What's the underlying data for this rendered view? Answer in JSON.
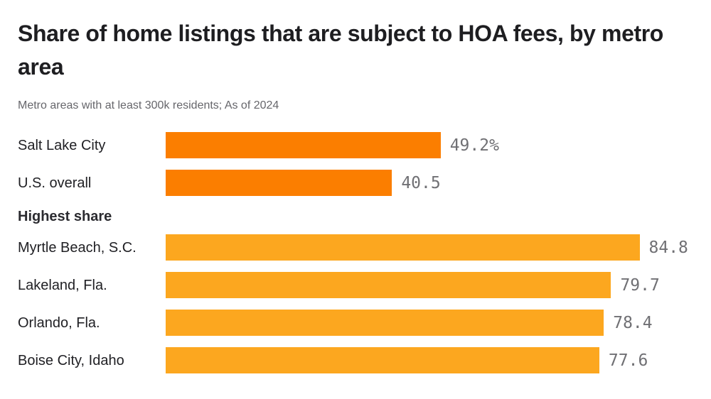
{
  "header": {
    "title": "Share of home listings that are subject to HOA fees, by metro area",
    "subtitle": "Metro areas with at least 300k residents; As of 2024"
  },
  "colors": {
    "highlight_orange": "#fb7e00",
    "standard_orange": "#fca71f",
    "value_text": "#707074",
    "title_text": "#1e1e21"
  },
  "chart_data": {
    "type": "bar",
    "orientation": "horizontal",
    "unit": "percent",
    "xlim": [
      0,
      85
    ],
    "grid": false,
    "legend": false,
    "groups": [
      {
        "heading": "",
        "rows": [
          {
            "label": "Salt Lake City",
            "value": 49.2,
            "display": "49.2%",
            "color_key": "highlight_orange"
          },
          {
            "label": "U.S. overall",
            "value": 40.5,
            "display": "40.5",
            "color_key": "highlight_orange"
          }
        ]
      },
      {
        "heading": "Highest share",
        "rows": [
          {
            "label": "Myrtle Beach, S.C.",
            "value": 84.8,
            "display": "84.8",
            "color_key": "standard_orange"
          },
          {
            "label": "Lakeland, Fla.",
            "value": 79.7,
            "display": "79.7",
            "color_key": "standard_orange"
          },
          {
            "label": "Orlando, Fla.",
            "value": 78.4,
            "display": "78.4",
            "color_key": "standard_orange"
          },
          {
            "label": "Boise City, Idaho",
            "value": 77.6,
            "display": "77.6",
            "color_key": "standard_orange"
          }
        ]
      }
    ]
  }
}
